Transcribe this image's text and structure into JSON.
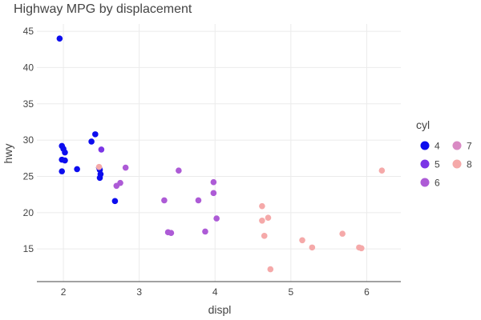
{
  "chart_data": {
    "type": "scatter",
    "title": "Highway MPG by displacement",
    "xlabel": "displ",
    "ylabel": "hwy",
    "xlim": [
      1.65,
      6.45
    ],
    "ylim": [
      10.5,
      46
    ],
    "x_ticks": [
      2,
      3,
      4,
      5,
      6
    ],
    "y_ticks": [
      15,
      20,
      25,
      30,
      35,
      40,
      45
    ],
    "grid": true,
    "legend": {
      "title": "cyl",
      "placement": "right",
      "entries": [
        {
          "label": "4",
          "color": "#0d0dee"
        },
        {
          "label": "5",
          "color": "#7b35e6"
        },
        {
          "label": "6",
          "color": "#ad5bd6"
        },
        {
          "label": "7",
          "color": "#d98ac4"
        },
        {
          "label": "8",
          "color": "#f5a9a9"
        }
      ]
    },
    "series": [
      {
        "name": "4",
        "color": "#0d0dee",
        "points": [
          [
            1.95,
            44
          ],
          [
            1.98,
            29.2
          ],
          [
            2.0,
            28.8
          ],
          [
            2.02,
            28.3
          ],
          [
            1.98,
            27.3
          ],
          [
            2.02,
            27.2
          ],
          [
            1.98,
            25.7
          ],
          [
            2.18,
            26
          ],
          [
            2.37,
            29.8
          ],
          [
            2.42,
            30.8
          ],
          [
            2.47,
            26.2
          ],
          [
            2.48,
            25.9
          ],
          [
            2.49,
            25.3
          ],
          [
            2.48,
            24.8
          ],
          [
            2.68,
            21.6
          ]
        ]
      },
      {
        "name": "5",
        "color": "#7b35e6",
        "points": [
          [
            2.5,
            28.7
          ]
        ]
      },
      {
        "name": "6",
        "color": "#ad5bd6",
        "points": [
          [
            2.82,
            26.2
          ],
          [
            2.75,
            24.1
          ],
          [
            2.7,
            23.7
          ],
          [
            3.52,
            25.8
          ],
          [
            3.33,
            21.7
          ],
          [
            3.38,
            17.3
          ],
          [
            3.42,
            17.2
          ],
          [
            3.78,
            21.7
          ],
          [
            3.87,
            17.4
          ],
          [
            3.98,
            24.2
          ],
          [
            3.98,
            22.7
          ],
          [
            4.02,
            19.2
          ]
        ]
      },
      {
        "name": "7",
        "color": "#d98ac4",
        "points": []
      },
      {
        "name": "8",
        "color": "#f5a9a9",
        "points": [
          [
            2.47,
            26.3
          ],
          [
            4.62,
            20.9
          ],
          [
            4.62,
            18.9
          ],
          [
            4.7,
            19.3
          ],
          [
            4.65,
            16.8
          ],
          [
            4.73,
            12.2
          ],
          [
            5.15,
            16.2
          ],
          [
            5.28,
            15.2
          ],
          [
            5.68,
            17.1
          ],
          [
            5.9,
            15.2
          ],
          [
            5.93,
            15.1
          ],
          [
            6.2,
            25.8
          ]
        ]
      }
    ]
  }
}
